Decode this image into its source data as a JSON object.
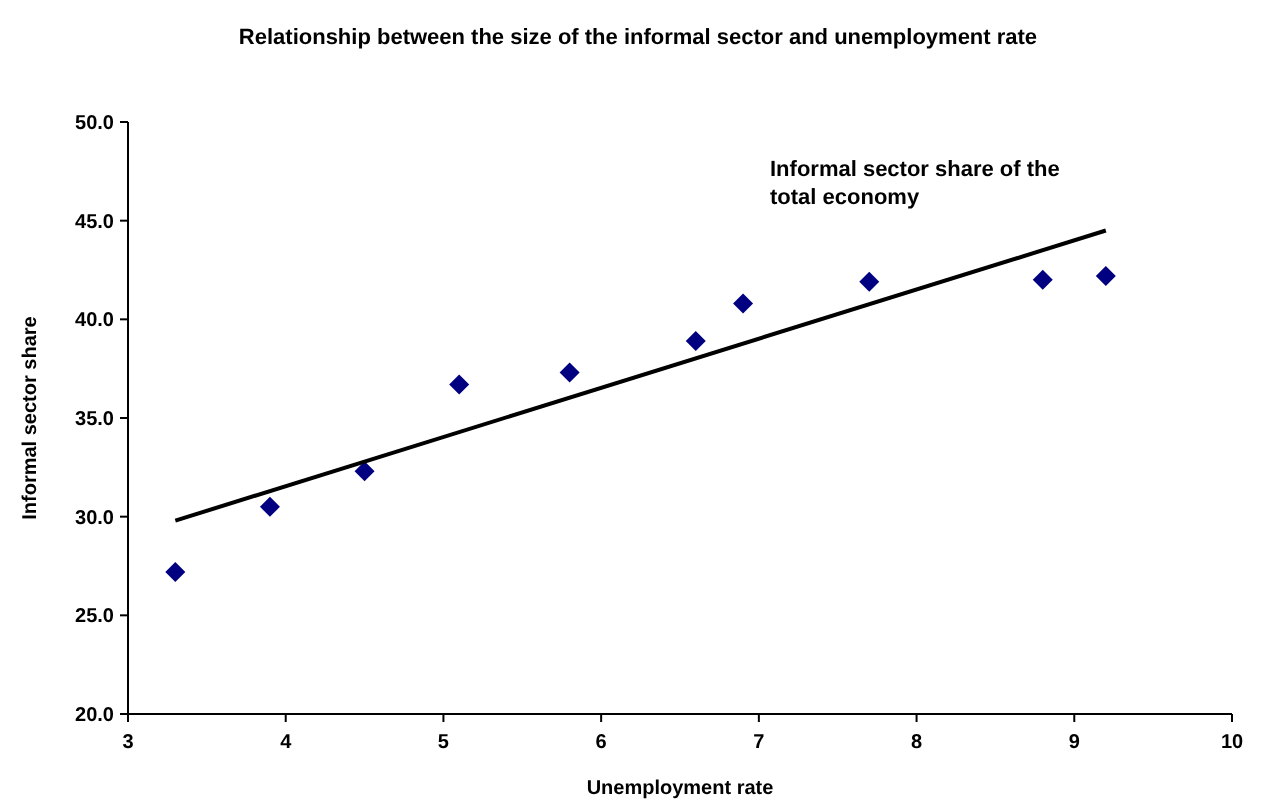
{
  "chart_data": {
    "type": "scatter",
    "title": "Relationship between the size of the informal sector and unemployment rate",
    "xlabel": "Unemployment rate",
    "ylabel": "Informal sector share",
    "annotations": [
      "Informal sector share of the total economy"
    ],
    "series": [
      {
        "color": "#000080",
        "x": [
          3.3,
          3.9,
          4.5,
          5.1,
          5.8,
          6.6,
          6.9,
          7.7,
          8.8,
          9.2
        ],
        "values": [
          27.2,
          30.5,
          32.3,
          36.7,
          37.3,
          38.9,
          40.8,
          41.9,
          42.0,
          42.2
        ],
        "marker": "diamond"
      },
      {
        "type": "line",
        "color": "#000000",
        "x": [
          3.3,
          9.2
        ],
        "values": [
          29.8,
          44.5
        ],
        "marker": "none",
        "line_style": "solid"
      }
    ],
    "xlim": [
      3,
      10
    ],
    "xticks": [
      3,
      4,
      5,
      6,
      7,
      8,
      9,
      10
    ],
    "ylim": [
      20,
      50
    ],
    "yticks": [
      {
        "value": 20,
        "label": "20.0"
      },
      {
        "value": 25,
        "label": "25.0"
      },
      {
        "value": 30,
        "label": "30.0"
      },
      {
        "value": 35,
        "label": "35.0"
      },
      {
        "value": 40,
        "label": "40.0"
      },
      {
        "value": 45,
        "label": "45.0"
      },
      {
        "value": 50,
        "label": "50.0"
      }
    ],
    "grid": false
  }
}
